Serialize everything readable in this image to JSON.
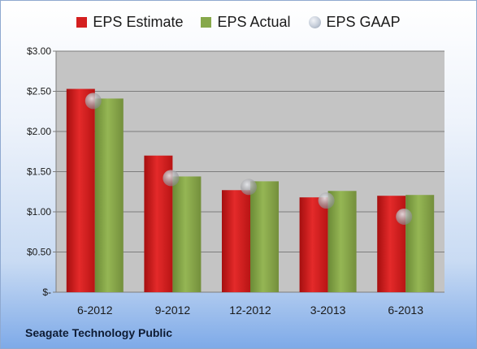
{
  "legend": {
    "estimate": "EPS Estimate",
    "actual": "EPS Actual",
    "gaap": "EPS GAAP"
  },
  "footer": "Seagate Technology Public",
  "colors": {
    "estimate": "#d41f1f",
    "actual": "#86a84a",
    "gaap": "#b9c2cf",
    "plot_bg": "#c4c4c4"
  },
  "chart_data": {
    "type": "bar",
    "categories": [
      "6-2012",
      "9-2012",
      "12-2012",
      "3-2013",
      "6-2013"
    ],
    "series": [
      {
        "name": "EPS Estimate",
        "values": [
          2.53,
          1.7,
          1.27,
          1.18,
          1.2
        ]
      },
      {
        "name": "EPS Actual",
        "values": [
          2.41,
          1.44,
          1.38,
          1.26,
          1.21
        ]
      },
      {
        "name": "EPS GAAP",
        "marker": "circle",
        "values": [
          2.38,
          1.42,
          1.31,
          1.14,
          0.94
        ]
      }
    ],
    "ylim": [
      0,
      3
    ],
    "yticks": [
      0,
      0.5,
      1,
      1.5,
      2,
      2.5,
      3
    ],
    "ytick_labels": [
      "$-",
      "$0.50",
      "$1.00",
      "$1.50",
      "$2.00",
      "$2.50",
      "$3.00"
    ],
    "grid": true,
    "legend_position": "top"
  }
}
